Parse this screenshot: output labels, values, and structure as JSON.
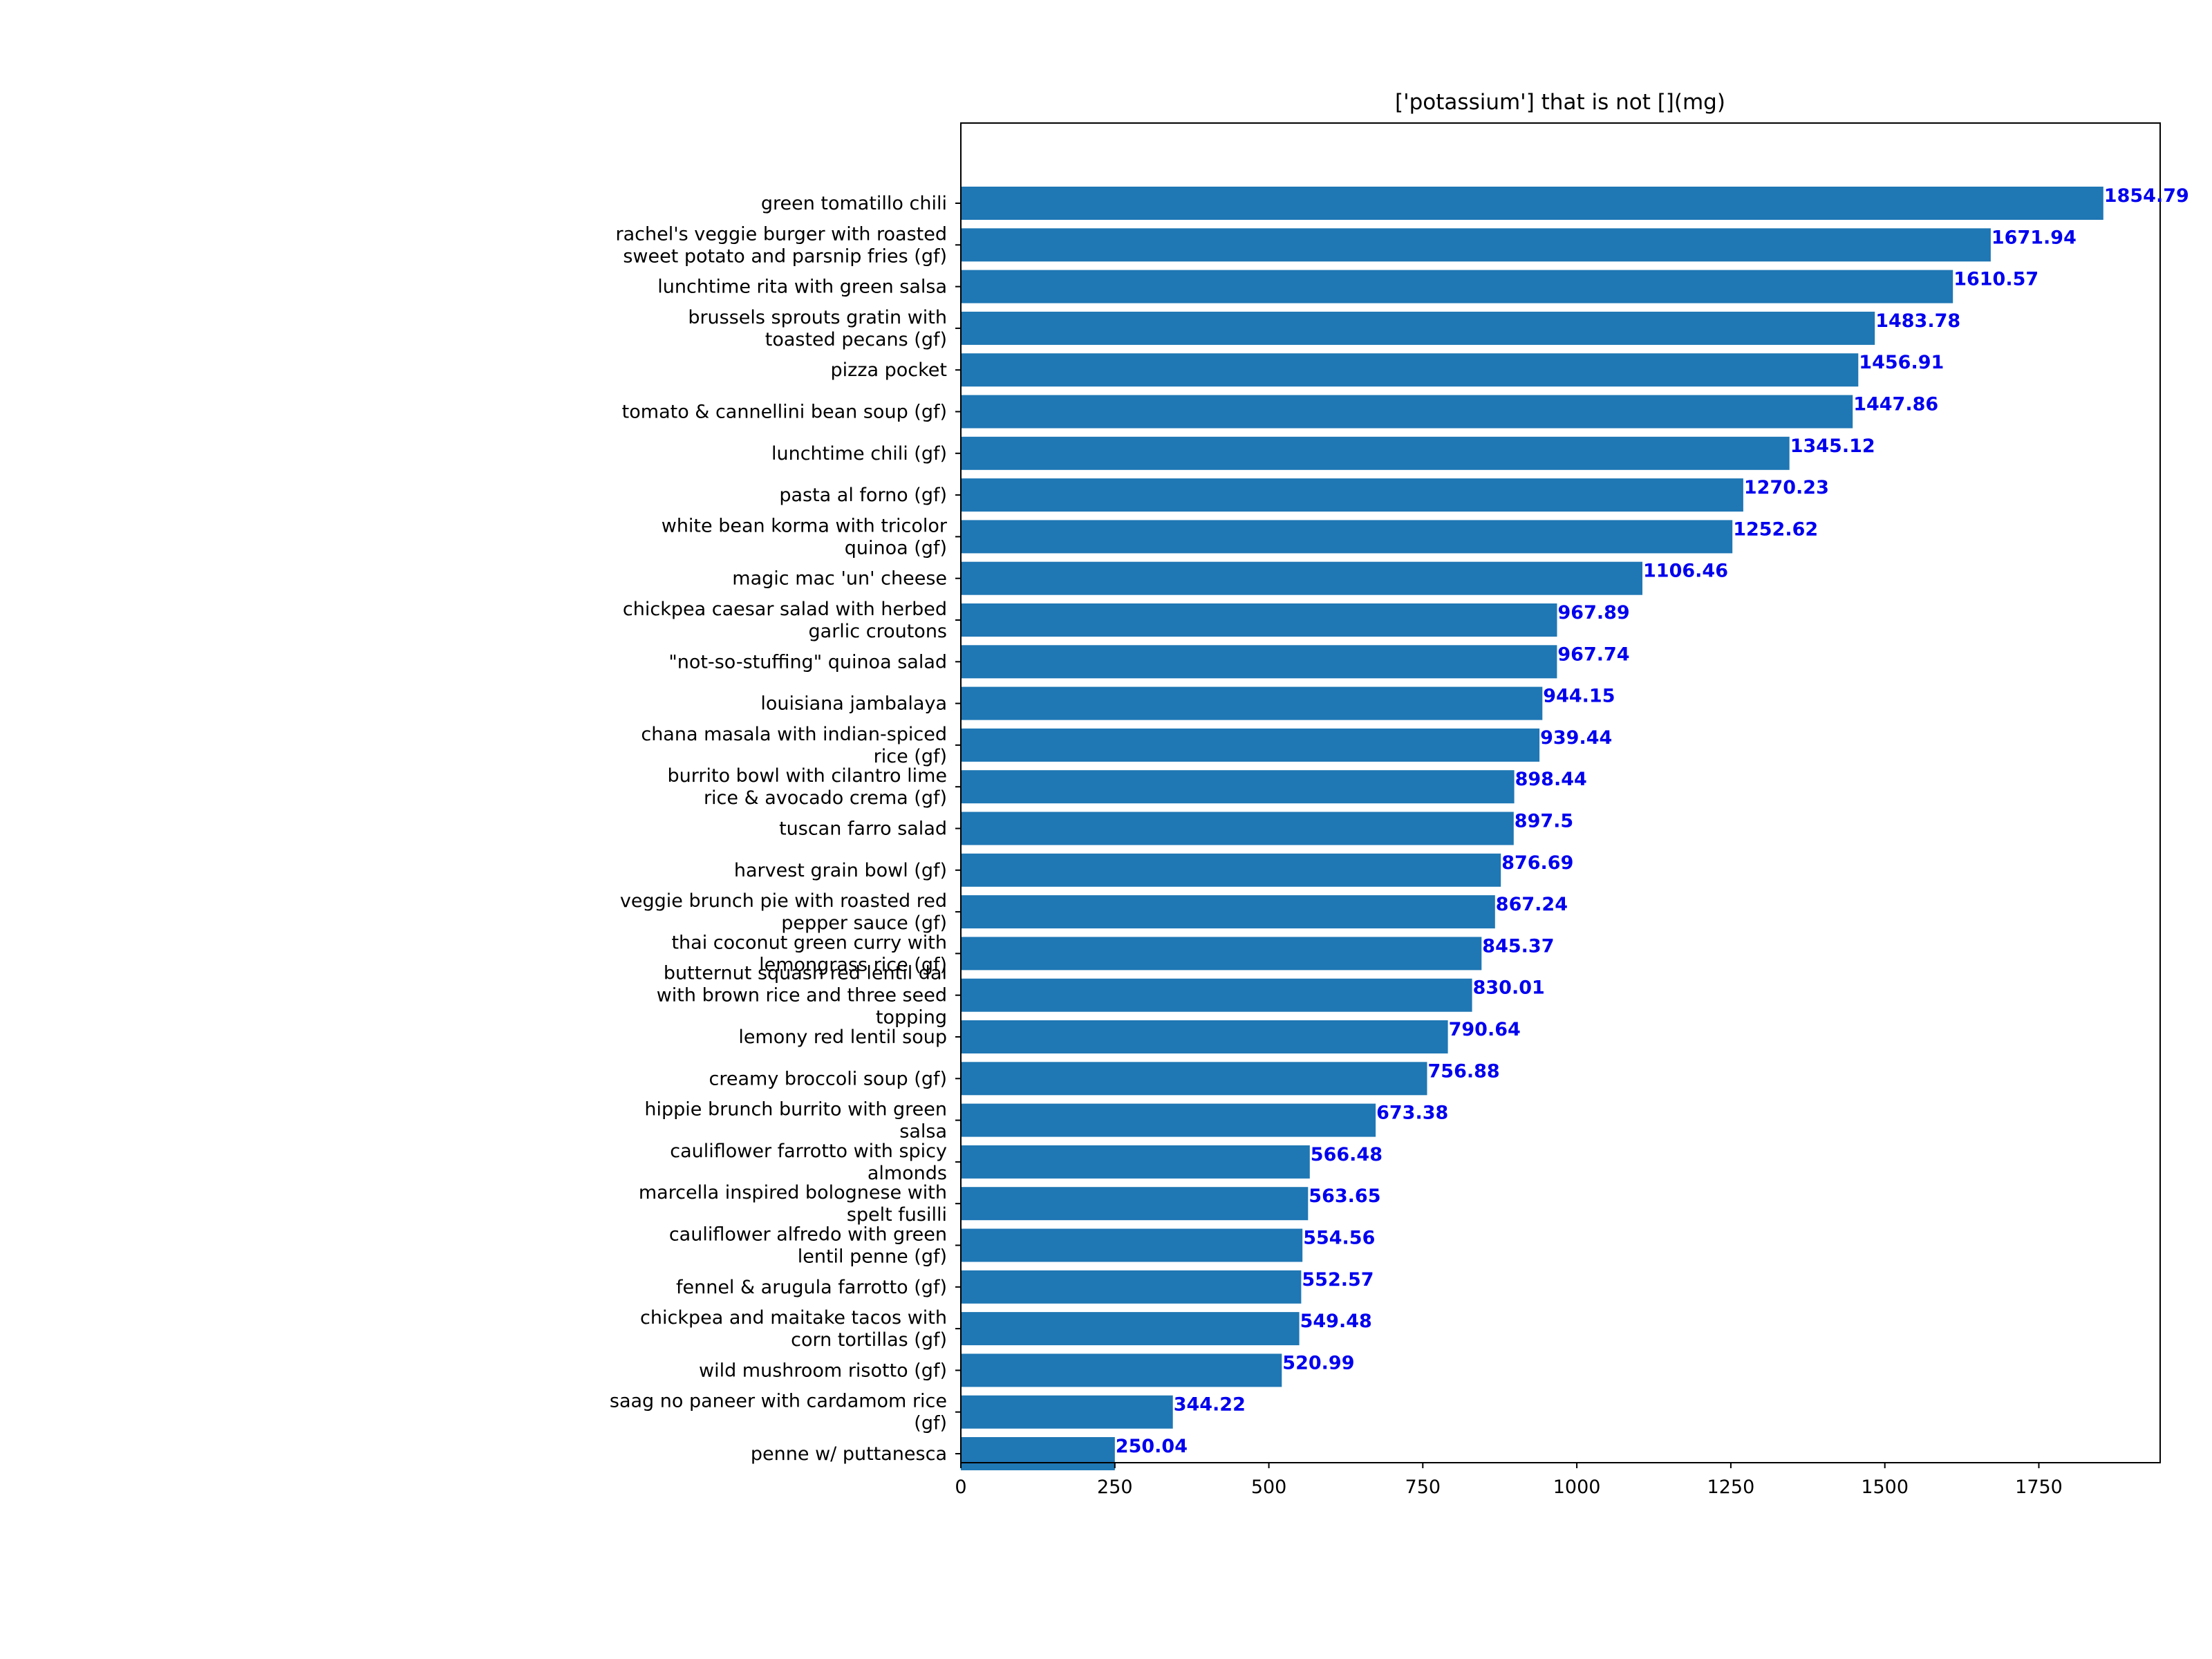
{
  "chart_data": {
    "type": "bar",
    "orientation": "horizontal",
    "title": "['potassium'] that is not [](mg)",
    "xlabel": "",
    "ylabel": "",
    "xlim": [
      0,
      1947
    ],
    "xticks": [
      0,
      250,
      500,
      750,
      1000,
      1250,
      1500,
      1750
    ],
    "grid": false,
    "bar_color": "#1f77b4",
    "label_color": "#0000ee",
    "categories": [
      [
        "green tomatillo chili"
      ],
      [
        "rachel's veggie burger with roasted",
        "sweet potato and parsnip fries (gf)"
      ],
      [
        "lunchtime rita with green salsa"
      ],
      [
        "brussels sprouts gratin with",
        "toasted pecans (gf)"
      ],
      [
        "pizza pocket"
      ],
      [
        "tomato & cannellini bean soup (gf)"
      ],
      [
        "lunchtime chili (gf)"
      ],
      [
        "pasta al forno (gf)"
      ],
      [
        "white bean korma with tricolor",
        "quinoa (gf)"
      ],
      [
        "magic mac 'un' cheese"
      ],
      [
        "chickpea caesar salad with herbed",
        "garlic croutons"
      ],
      [
        "\"not-so-stuffing\" quinoa salad"
      ],
      [
        "louisiana jambalaya"
      ],
      [
        "chana masala with indian-spiced",
        "rice (gf)"
      ],
      [
        "burrito bowl with cilantro lime",
        "rice & avocado crema (gf)"
      ],
      [
        "tuscan farro salad"
      ],
      [
        "harvest grain bowl (gf)"
      ],
      [
        "veggie brunch pie with roasted red",
        "pepper sauce (gf)"
      ],
      [
        "thai coconut green curry with",
        "lemongrass rice (gf)"
      ],
      [
        "butternut squash red lentil dal",
        "with brown rice and three seed",
        "topping"
      ],
      [
        "lemony red lentil soup"
      ],
      [
        "creamy broccoli soup (gf)"
      ],
      [
        "hippie brunch burrito with green",
        "salsa"
      ],
      [
        "cauliflower farrotto with spicy",
        "almonds"
      ],
      [
        "marcella inspired bolognese with",
        "spelt fusilli"
      ],
      [
        "cauliflower alfredo with green",
        "lentil penne (gf)"
      ],
      [
        "fennel & arugula farrotto (gf)"
      ],
      [
        "chickpea and maitake tacos with",
        "corn tortillas (gf)"
      ],
      [
        "wild mushroom risotto (gf)"
      ],
      [
        "saag no paneer with cardamom rice",
        "(gf)"
      ],
      [
        "penne w/ puttanesca"
      ]
    ],
    "values": [
      1854.79,
      1671.94,
      1610.57,
      1483.78,
      1456.91,
      1447.86,
      1345.12,
      1270.23,
      1252.62,
      1106.46,
      967.89,
      967.74,
      944.15,
      939.44,
      898.44,
      897.5,
      876.69,
      867.24,
      845.37,
      830.01,
      790.64,
      756.88,
      673.38,
      566.48,
      563.65,
      554.56,
      552.57,
      549.48,
      520.99,
      344.22,
      250.04
    ],
    "value_labels": [
      "1854.79",
      "1671.94",
      "1610.57",
      "1483.78",
      "1456.91",
      "1447.86",
      "1345.12",
      "1270.23",
      "1252.62",
      "1106.46",
      "967.89",
      "967.74",
      "944.15",
      "939.44",
      "898.44",
      "897.5",
      "876.69",
      "867.24",
      "845.37",
      "830.01",
      "790.64",
      "756.88",
      "673.38",
      "566.48",
      "563.65",
      "554.56",
      "552.57",
      "549.48",
      "520.99",
      "344.22",
      "250.04"
    ]
  }
}
